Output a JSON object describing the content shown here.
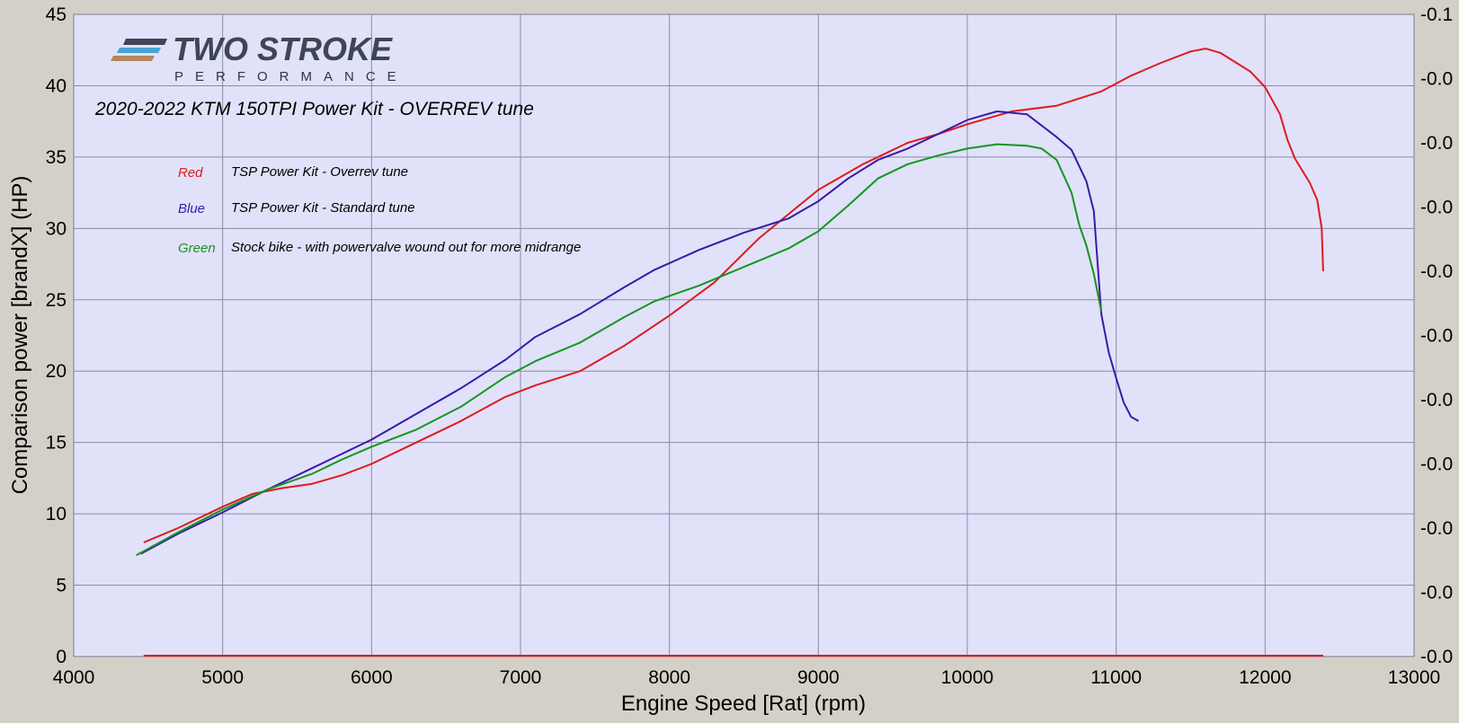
{
  "logo": {
    "main": "TWO STROKE",
    "sub": "PERFORMANCE"
  },
  "chart_data": {
    "type": "line",
    "title": "2020-2022 KTM 150TPI Power Kit - OVERREV tune",
    "xlabel": "Engine Speed [Rat] (rpm)",
    "ylabel": "Comparison power [brandX] (HP)",
    "xlim": [
      4000,
      13000
    ],
    "ylim": [
      0,
      45
    ],
    "x_ticks": [
      "4000",
      "5000",
      "6000",
      "7000",
      "8000",
      "9000",
      "10000",
      "11000",
      "12000",
      "13000"
    ],
    "y_ticks": [
      "0",
      "5",
      "10",
      "15",
      "20",
      "25",
      "30",
      "35",
      "40",
      "45"
    ],
    "y2_ticks": [
      "-0.0",
      "-0.0",
      "-0.0",
      "-0.0",
      "-0.0",
      "-0.0",
      "-0.0",
      "-0.0",
      "-0.0",
      "-0.0",
      "-0.1"
    ],
    "grid": true,
    "background": "#e1e1fa",
    "legend": [
      {
        "key": "Red",
        "text": "TSP Power Kit - Overrev tune",
        "color": "#dd1c1c"
      },
      {
        "key": "Blue",
        "text": "TSP Power Kit - Standard tune",
        "color": "#3a1aa8"
      },
      {
        "key": "Green",
        "text": "Stock bike - with powervalve wound out for more midrange",
        "color": "#12971e"
      }
    ],
    "series": [
      {
        "name": "Red",
        "color": "#dd1c1c",
        "x": [
          4470,
          4700,
          5000,
          5200,
          5400,
          5600,
          5800,
          6000,
          6300,
          6600,
          6900,
          7100,
          7400,
          7700,
          8000,
          8300,
          8600,
          8800,
          9000,
          9300,
          9600,
          9800,
          10000,
          10300,
          10600,
          10900,
          11100,
          11300,
          11500,
          11600,
          11700,
          11900,
          12000,
          12100,
          12150,
          12200,
          12300,
          12350,
          12380,
          12390
        ],
        "values": [
          8.0,
          9.0,
          10.5,
          11.4,
          11.8,
          12.1,
          12.7,
          13.5,
          15.0,
          16.5,
          18.2,
          19.0,
          20.0,
          21.8,
          23.9,
          26.2,
          29.3,
          31.0,
          32.7,
          34.5,
          36.0,
          36.6,
          37.3,
          38.2,
          38.6,
          39.6,
          40.7,
          41.6,
          42.4,
          42.6,
          42.3,
          41.0,
          39.9,
          38.0,
          36.2,
          34.9,
          33.2,
          32.0,
          30.0,
          27.0
        ]
      },
      {
        "name": "Blue",
        "color": "#3a1aa8",
        "x": [
          4450,
          4700,
          5000,
          5300,
          5600,
          5800,
          6000,
          6300,
          6600,
          6900,
          7100,
          7400,
          7700,
          7900,
          8200,
          8500,
          8800,
          9000,
          9200,
          9400,
          9600,
          9800,
          10000,
          10200,
          10400,
          10600,
          10700,
          10800,
          10850,
          10900,
          10950,
          11000,
          11050,
          11100,
          11150
        ],
        "values": [
          7.2,
          8.6,
          10.1,
          11.7,
          13.2,
          14.2,
          15.2,
          17.0,
          18.8,
          20.8,
          22.4,
          24.0,
          25.9,
          27.1,
          28.5,
          29.7,
          30.7,
          31.9,
          33.5,
          34.8,
          35.6,
          36.6,
          37.6,
          38.2,
          38.0,
          36.4,
          35.5,
          33.3,
          31.2,
          24.0,
          21.3,
          19.5,
          17.8,
          16.8,
          16.5
        ]
      },
      {
        "name": "Green",
        "color": "#12971e",
        "x": [
          4420,
          4700,
          5000,
          5300,
          5600,
          5800,
          6000,
          6300,
          6600,
          6900,
          7100,
          7400,
          7700,
          7900,
          8200,
          8500,
          8800,
          9000,
          9200,
          9400,
          9600,
          9800,
          10000,
          10200,
          10400,
          10500,
          10600,
          10700,
          10750,
          10800,
          10850,
          10900
        ],
        "values": [
          7.1,
          8.7,
          10.3,
          11.7,
          12.8,
          13.8,
          14.7,
          15.9,
          17.5,
          19.6,
          20.7,
          22.0,
          23.8,
          24.9,
          26.0,
          27.3,
          28.6,
          29.8,
          31.6,
          33.5,
          34.5,
          35.1,
          35.6,
          35.9,
          35.8,
          35.6,
          34.8,
          32.5,
          30.3,
          28.8,
          26.8,
          24.2
        ]
      }
    ]
  }
}
